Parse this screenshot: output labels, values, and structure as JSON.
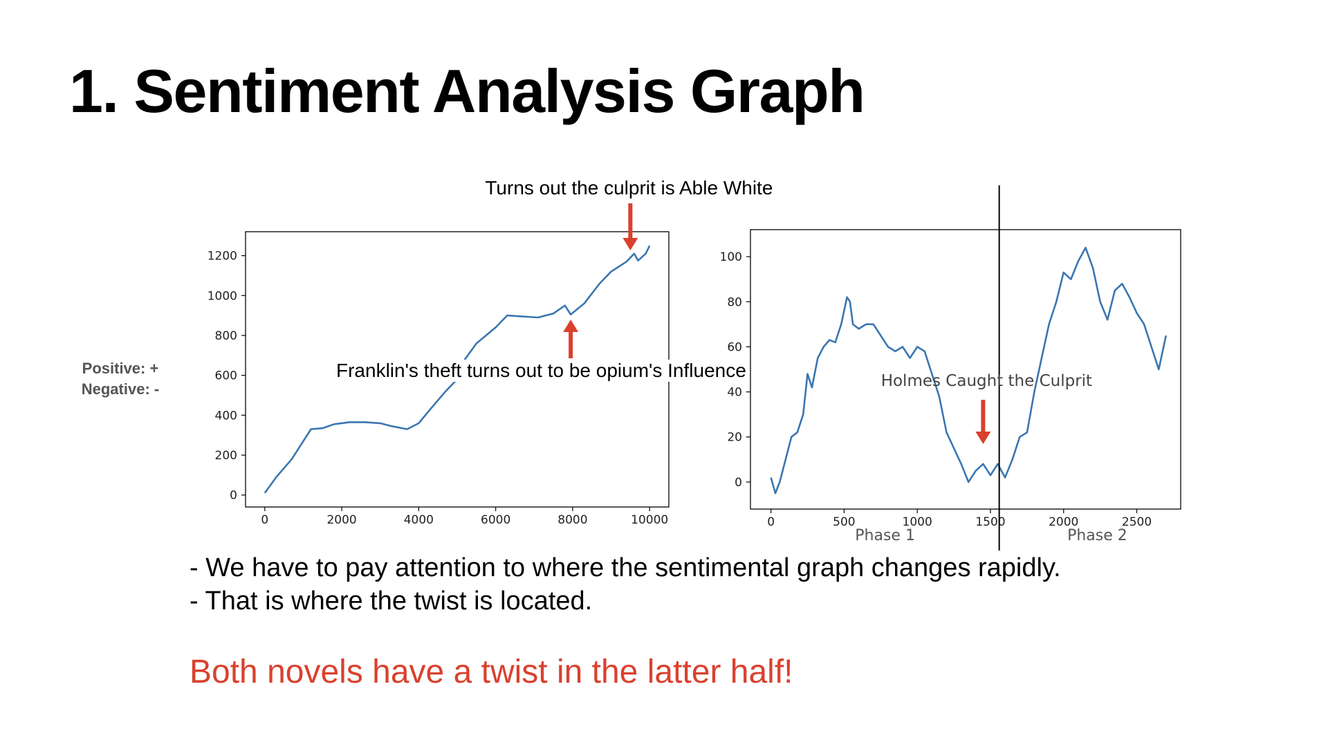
{
  "slide": {
    "title": "1. Sentiment Analysis Graph",
    "side_label": {
      "positive": "Positive: +",
      "negative": "Negative: -"
    },
    "bullets": [
      "- We have to pay attention to where the sentimental graph changes rapidly.",
      "-  That is where the twist is located."
    ],
    "conclusion": "Both novels have a twist in the latter half!",
    "colors": {
      "line": "#3a76b0",
      "arrow": "#d9412e",
      "conclusion": "#d9412e"
    }
  },
  "chart_data": [
    {
      "type": "line",
      "xlim": [
        -500,
        10500
      ],
      "ylim": [
        -60,
        1320
      ],
      "xticks": [
        0,
        2000,
        4000,
        6000,
        8000,
        10000
      ],
      "yticks": [
        0,
        200,
        400,
        600,
        800,
        1000,
        1200
      ],
      "grid": false,
      "series": [
        {
          "points": [
            [
              0,
              10
            ],
            [
              300,
              90
            ],
            [
              700,
              180
            ],
            [
              1000,
              270
            ],
            [
              1200,
              330
            ],
            [
              1500,
              335
            ],
            [
              1800,
              355
            ],
            [
              2200,
              365
            ],
            [
              2600,
              365
            ],
            [
              3000,
              360
            ],
            [
              3300,
              345
            ],
            [
              3700,
              330
            ],
            [
              4000,
              360
            ],
            [
              4300,
              430
            ],
            [
              4700,
              520
            ],
            [
              5000,
              580
            ],
            [
              5200,
              680
            ],
            [
              5500,
              760
            ],
            [
              6000,
              840
            ],
            [
              6300,
              900
            ],
            [
              6700,
              895
            ],
            [
              7100,
              890
            ],
            [
              7500,
              910
            ],
            [
              7800,
              950
            ],
            [
              7950,
              905
            ],
            [
              8300,
              960
            ],
            [
              8700,
              1060
            ],
            [
              9000,
              1120
            ],
            [
              9400,
              1170
            ],
            [
              9600,
              1210
            ],
            [
              9700,
              1175
            ],
            [
              9900,
              1210
            ],
            [
              10000,
              1250
            ]
          ]
        }
      ],
      "annotations": [
        {
          "text": "Turns out the culprit is Able White",
          "x": 9500,
          "y": 1200,
          "arrow": "down"
        },
        {
          "text": "Franklin's theft turns out to be opium's Influence",
          "x": 7950,
          "y": 900,
          "arrow": "up"
        }
      ]
    },
    {
      "type": "line",
      "xlim": [
        -140,
        2800
      ],
      "ylim": [
        -12,
        112
      ],
      "xticks": [
        0,
        500,
        1000,
        1500,
        2000,
        2500
      ],
      "yticks": [
        0,
        20,
        40,
        60,
        80,
        100
      ],
      "grid": false,
      "series": [
        {
          "points": [
            [
              0,
              2
            ],
            [
              30,
              -5
            ],
            [
              60,
              0
            ],
            [
              100,
              10
            ],
            [
              140,
              20
            ],
            [
              180,
              22
            ],
            [
              220,
              30
            ],
            [
              250,
              48
            ],
            [
              280,
              42
            ],
            [
              320,
              55
            ],
            [
              360,
              60
            ],
            [
              400,
              63
            ],
            [
              440,
              62
            ],
            [
              480,
              70
            ],
            [
              520,
              82
            ],
            [
              540,
              80
            ],
            [
              560,
              70
            ],
            [
              600,
              68
            ],
            [
              650,
              70
            ],
            [
              700,
              70
            ],
            [
              750,
              65
            ],
            [
              800,
              60
            ],
            [
              850,
              58
            ],
            [
              900,
              60
            ],
            [
              950,
              55
            ],
            [
              1000,
              60
            ],
            [
              1050,
              58
            ],
            [
              1100,
              48
            ],
            [
              1150,
              38
            ],
            [
              1200,
              22
            ],
            [
              1250,
              15
            ],
            [
              1300,
              8
            ],
            [
              1350,
              0
            ],
            [
              1400,
              5
            ],
            [
              1450,
              8
            ],
            [
              1500,
              3
            ],
            [
              1550,
              8
            ],
            [
              1600,
              2
            ],
            [
              1650,
              10
            ],
            [
              1700,
              20
            ],
            [
              1750,
              22
            ],
            [
              1800,
              40
            ],
            [
              1850,
              55
            ],
            [
              1900,
              70
            ],
            [
              1950,
              80
            ],
            [
              2000,
              93
            ],
            [
              2050,
              90
            ],
            [
              2100,
              98
            ],
            [
              2150,
              104
            ],
            [
              2200,
              95
            ],
            [
              2250,
              80
            ],
            [
              2300,
              72
            ],
            [
              2350,
              85
            ],
            [
              2400,
              88
            ],
            [
              2450,
              82
            ],
            [
              2500,
              75
            ],
            [
              2550,
              70
            ],
            [
              2600,
              60
            ],
            [
              2650,
              50
            ],
            [
              2700,
              65
            ]
          ]
        }
      ],
      "annotations": [
        {
          "text": "Holmes Caught the Culprit",
          "x": 1450,
          "y": 15,
          "arrow": "down"
        }
      ],
      "divider_x": 1560,
      "phase_labels": [
        {
          "text": "Phase 1",
          "x": 780
        },
        {
          "text": "Phase 2",
          "x": 2230
        }
      ]
    }
  ]
}
